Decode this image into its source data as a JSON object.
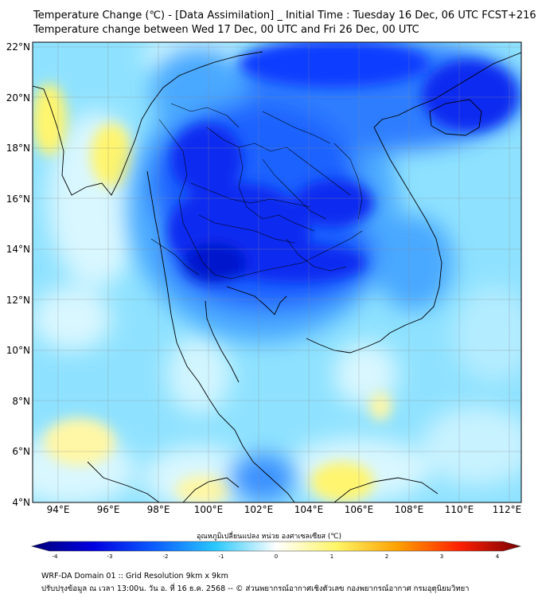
{
  "title_line1": "Temperature Change (℃) - [Data Assimilation] _ Initial Time : Tuesday 16 Dec, 06 UTC FCST+216",
  "title_line2": "Temperature change between Wed 17 Dec, 00 UTC and Fri 26 Dec, 00 UTC",
  "map": {
    "lon_range": [
      93,
      112.5
    ],
    "lat_range": [
      4,
      22.2
    ],
    "lon_ticks": [
      "94°E",
      "96°E",
      "98°E",
      "100°E",
      "102°E",
      "104°E",
      "106°E",
      "108°E",
      "110°E",
      "112°E"
    ],
    "lat_ticks": [
      "22°N",
      "20°N",
      "18°N",
      "16°N",
      "14°N",
      "12°N",
      "10°N",
      "8°N",
      "6°N",
      "4°N"
    ],
    "grid": true
  },
  "colorbar": {
    "title": "อุณหภูมิเปลี่ยนแปลง หน่วย องศาเซลเซียส (℃)",
    "ticks": [
      "-4",
      "-3",
      "-2",
      "-1",
      "0",
      "1",
      "2",
      "3",
      "4"
    ],
    "range": [
      -4,
      4
    ],
    "colors": [
      "#00007a",
      "#0000e0",
      "#0a5cff",
      "#29c8ff",
      "#ffffff",
      "#fff566",
      "#ffa000",
      "#ff2000",
      "#7a0000"
    ]
  },
  "footer_line1": "WRF-DA Domain 01 :: Grid Resolution 9km x 9km",
  "footer_line2": "ปรับปรุงข้อมูล ณ เวลา 13:00น. วัน อ. ที่ 16 ธ.ค. 2568 -- © ส่วนพยากรณ์อากาศเชิงตัวเลข กองพยากรณ์อากาศ กรมอุตุนิยมวิทยา"
}
